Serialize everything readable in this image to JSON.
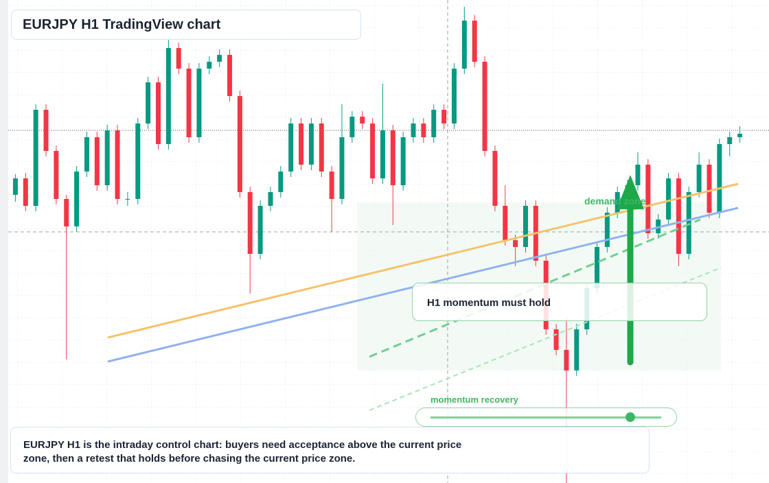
{
  "chart_data": {
    "type": "candlestick",
    "title": "EURJPY H1 TradingView chart",
    "annotations": [
      "demand zone",
      "H1 momentum must hold",
      "momentum recovery"
    ],
    "caption": "EURJPY H1 is the intraday control chart: buyers need acceptance above the current price zone, then a retest that holds before chasing the current price zone.",
    "up_color": "#089981",
    "down_color": "#f23645",
    "grid": true,
    "ylim": [
      0,
      704
    ],
    "ohlc": [
      [
        420,
        450,
        410,
        444
      ],
      [
        444,
        452,
        396,
        404
      ],
      [
        404,
        552,
        396,
        544
      ],
      [
        544,
        552,
        476,
        484
      ],
      [
        484,
        492,
        406,
        414
      ],
      [
        414,
        420,
        180,
        374
      ],
      [
        374,
        462,
        366,
        454
      ],
      [
        454,
        512,
        446,
        504
      ],
      [
        504,
        512,
        426,
        434
      ],
      [
        434,
        522,
        426,
        514
      ],
      [
        514,
        522,
        406,
        414
      ],
      [
        414,
        424,
        404,
        414
      ],
      [
        414,
        532,
        406,
        524
      ],
      [
        524,
        592,
        516,
        584
      ],
      [
        584,
        592,
        486,
        494
      ],
      [
        494,
        646,
        486,
        634
      ],
      [
        634,
        642,
        596,
        604
      ],
      [
        604,
        612,
        496,
        504
      ],
      [
        504,
        612,
        496,
        604
      ],
      [
        604,
        622,
        596,
        614
      ],
      [
        614,
        632,
        606,
        624
      ],
      [
        624,
        632,
        556,
        564
      ],
      [
        564,
        572,
        416,
        424
      ],
      [
        424,
        432,
        276,
        334
      ],
      [
        334,
        412,
        326,
        404
      ],
      [
        404,
        432,
        396,
        424
      ],
      [
        424,
        462,
        416,
        454
      ],
      [
        454,
        532,
        446,
        524
      ],
      [
        524,
        532,
        456,
        464
      ],
      [
        464,
        532,
        456,
        524
      ],
      [
        524,
        532,
        446,
        454
      ],
      [
        454,
        462,
        366,
        414
      ],
      [
        414,
        552,
        406,
        504
      ],
      [
        504,
        542,
        496,
        534
      ],
      [
        534,
        542,
        516,
        524
      ],
      [
        524,
        532,
        436,
        444
      ],
      [
        444,
        582,
        436,
        514
      ],
      [
        514,
        522,
        376,
        434
      ],
      [
        434,
        512,
        426,
        504
      ],
      [
        504,
        532,
        496,
        524
      ],
      [
        524,
        532,
        496,
        504
      ],
      [
        504,
        552,
        496,
        544
      ],
      [
        544,
        552,
        516,
        524
      ],
      [
        524,
        612,
        516,
        604
      ],
      [
        604,
        694,
        596,
        674
      ],
      [
        674,
        682,
        606,
        614
      ],
      [
        614,
        622,
        476,
        484
      ],
      [
        484,
        492,
        396,
        404
      ],
      [
        404,
        434,
        346,
        354
      ],
      [
        354,
        362,
        316,
        344
      ],
      [
        344,
        412,
        336,
        404
      ],
      [
        404,
        412,
        316,
        324
      ],
      [
        324,
        332,
        216,
        224
      ],
      [
        224,
        232,
        186,
        194
      ],
      [
        194,
        242,
        0,
        164
      ],
      [
        164,
        232,
        156,
        224
      ],
      [
        224,
        292,
        216,
        284
      ],
      [
        284,
        352,
        276,
        344
      ],
      [
        344,
        402,
        336,
        394
      ],
      [
        394,
        432,
        386,
        424
      ],
      [
        424,
        442,
        416,
        434
      ],
      [
        434,
        482,
        426,
        464
      ],
      [
        464,
        472,
        356,
        364
      ],
      [
        364,
        392,
        356,
        384
      ],
      [
        384,
        452,
        376,
        444
      ],
      [
        444,
        452,
        316,
        334
      ],
      [
        334,
        432,
        326,
        424
      ],
      [
        424,
        482,
        416,
        464
      ],
      [
        464,
        472,
        386,
        394
      ],
      [
        394,
        502,
        386,
        494
      ],
      [
        494,
        512,
        476,
        504
      ],
      [
        504,
        520,
        496,
        509
      ]
    ]
  }
}
